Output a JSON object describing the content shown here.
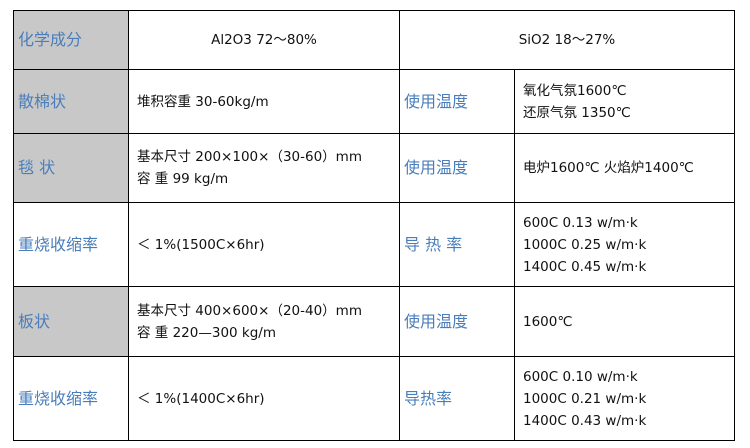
{
  "colors": {
    "label_text": "#4a7ebb",
    "label_bg": "#c8c8c8",
    "border": "#000000"
  },
  "header": {
    "label": "化学成分",
    "al2o3": "Al2O3 72～80%",
    "sio2": "SiO2 18～27%"
  },
  "rows": [
    {
      "label": "散棉状",
      "value": [
        "堆积容重 30-60kg/m"
      ],
      "prop_label": "使用温度",
      "prop_value": [
        "氧化气氛1600℃",
        "还原气氛 1350℃"
      ]
    },
    {
      "label": "毯 状",
      "value": [
        "基本尺寸 200×100×（30-60）mm",
        "容 重 99 kg/m"
      ],
      "prop_label": "使用温度",
      "prop_value": [
        "电炉1600℃ 火焰炉1400℃"
      ]
    },
    {
      "label": "重烧收缩率",
      "value": [
        "＜ 1%(1500C×6hr)"
      ],
      "prop_label": "导 热 率",
      "prop_value": [
        "600C 0.13 w/m·k",
        "1000C 0.25 w/m·k",
        "1400C 0.45 w/m·k"
      ]
    },
    {
      "label": "板状",
      "value": [
        "基本尺寸 400×600×（20-40）mm",
        "容 重 220—300 kg/m"
      ],
      "prop_label": "使用温度",
      "prop_value": [
        "1600℃"
      ]
    },
    {
      "label": "重烧收缩率",
      "value": [
        "＜ 1%(1400C×6hr)"
      ],
      "prop_label": "导热率",
      "prop_value": [
        "600C 0.10 w/m·k",
        "1000C 0.21 w/m·k",
        "1400C 0.43 w/m·k"
      ]
    }
  ]
}
